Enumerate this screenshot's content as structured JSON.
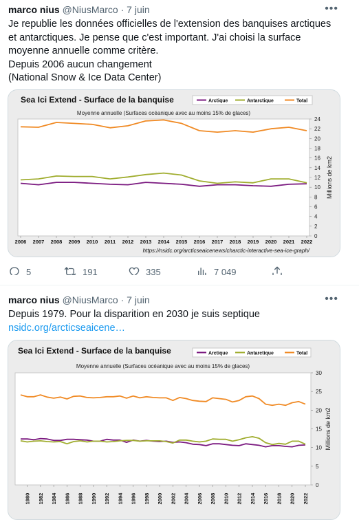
{
  "tweets": [
    {
      "author": {
        "name": "marco nius",
        "handle": "@NiusMarco"
      },
      "date": "7 juin",
      "text_lines": [
        "Je republie les données officielles de l'extension des banquises arctiques",
        "et antarctiques. Je pense que c'est important. J'ai choisi la surface",
        "moyenne annuelle comme critère.",
        "Depuis 2006 aucun changement",
        "(National Snow & Ice Data Center)"
      ],
      "actions": {
        "replies": "5",
        "retweets": "191",
        "likes": "335",
        "views": "7 049"
      }
    },
    {
      "author": {
        "name": "marco nius",
        "handle": "@NiusMarco"
      },
      "date": "7 juin",
      "text_lines": [
        "Depuis 1979. Pour la disparition en 2030 je suis septique"
      ],
      "link": "nsidc.org/arcticseaicene…"
    }
  ],
  "icons": {
    "more": "more-horizontal-icon",
    "reply": "reply-icon",
    "retweet": "retweet-icon",
    "like": "heart-icon",
    "views": "views-icon",
    "share": "share-icon"
  },
  "colors": {
    "arctique": "#7b1a80",
    "antarctique": "#a0ad2f",
    "total": "#f08a24",
    "link": "#1d9bf0"
  },
  "chart_data": [
    {
      "type": "line",
      "title": "Sea Ici Extend - Surface de la banquise",
      "subtitle": "Moyenne annuelle (Surfaces océanique avec au moins 15% de glaces)",
      "ylabel": "Millions de km2",
      "source": "https://nsidc.org/arcticseaicenews/charctic-interactive-sea-ice-graph/",
      "legend_position": "top-right",
      "ylim": [
        0,
        24
      ],
      "yticks": [
        0,
        2,
        4,
        6,
        8,
        10,
        12,
        14,
        16,
        18,
        20,
        22,
        24
      ],
      "x": [
        "2006",
        "2007",
        "2008",
        "2009",
        "2010",
        "2011",
        "2012",
        "2013",
        "2014",
        "2015",
        "2016",
        "2017",
        "2018",
        "2019",
        "2020",
        "2021",
        "2022"
      ],
      "series": [
        {
          "name": "Arctique",
          "values": [
            10.8,
            10.5,
            11.0,
            11.0,
            10.8,
            10.6,
            10.5,
            11.0,
            10.8,
            10.6,
            10.2,
            10.5,
            10.5,
            10.3,
            10.2,
            10.6,
            10.7
          ]
        },
        {
          "name": "Antarctique",
          "values": [
            11.5,
            11.7,
            12.3,
            12.2,
            12.2,
            11.7,
            12.1,
            12.6,
            12.9,
            12.5,
            11.3,
            10.8,
            11.1,
            10.9,
            11.7,
            11.7,
            10.9
          ]
        },
        {
          "name": "Total",
          "values": [
            22.4,
            22.3,
            23.3,
            23.1,
            22.9,
            22.2,
            22.6,
            23.6,
            23.8,
            23.1,
            21.6,
            21.3,
            21.6,
            21.3,
            22.0,
            22.3,
            21.6
          ]
        }
      ]
    },
    {
      "type": "line",
      "title": "Sea Ici Extend - Surface de la banquise",
      "subtitle": "Moyenne annuelle (Surfaces océanique avec au moins 15% de glaces)",
      "ylabel": "Millions de km2",
      "legend_position": "top-right",
      "ylim": [
        0,
        30
      ],
      "yticks": [
        0,
        5,
        10,
        15,
        20,
        25,
        30
      ],
      "x": [
        "1979",
        "1980",
        "1981",
        "1982",
        "1983",
        "1984",
        "1985",
        "1986",
        "1987",
        "1988",
        "1989",
        "1990",
        "1991",
        "1992",
        "1993",
        "1994",
        "1995",
        "1996",
        "1997",
        "1998",
        "1999",
        "2000",
        "2001",
        "2002",
        "2003",
        "2004",
        "2005",
        "2006",
        "2007",
        "2008",
        "2009",
        "2010",
        "2011",
        "2012",
        "2013",
        "2014",
        "2015",
        "2016",
        "2017",
        "2018",
        "2019",
        "2020",
        "2021",
        "2022"
      ],
      "xtick_labels": [
        "1980",
        "1982",
        "1984",
        "1986",
        "1988",
        "1990",
        "1992",
        "1994",
        "1996",
        "1998",
        "2000",
        "2002",
        "2004",
        "2006",
        "2008",
        "2010",
        "2012",
        "2014",
        "2016",
        "2018",
        "2020",
        "2022"
      ],
      "series": [
        {
          "name": "Arctique",
          "values": [
            12.3,
            12.3,
            12.1,
            12.4,
            12.3,
            11.9,
            11.9,
            12.2,
            12.2,
            12.1,
            12.0,
            11.7,
            11.7,
            12.2,
            12.0,
            12.0,
            11.4,
            12.0,
            11.7,
            11.9,
            11.7,
            11.6,
            11.7,
            11.4,
            11.5,
            11.3,
            10.9,
            10.8,
            10.5,
            11.0,
            11.0,
            10.8,
            10.6,
            10.5,
            11.0,
            10.8,
            10.6,
            10.2,
            10.5,
            10.5,
            10.3,
            10.2,
            10.6,
            10.7
          ]
        },
        {
          "name": "Antarctique",
          "values": [
            11.8,
            11.5,
            11.7,
            11.8,
            11.6,
            11.5,
            11.6,
            11.0,
            11.6,
            11.8,
            11.5,
            11.7,
            11.7,
            11.5,
            11.6,
            11.8,
            11.9,
            11.9,
            11.7,
            11.8,
            11.8,
            11.8,
            11.6,
            11.2,
            12.0,
            12.0,
            11.7,
            11.5,
            11.7,
            12.3,
            12.2,
            12.2,
            11.7,
            12.1,
            12.6,
            12.9,
            12.5,
            11.3,
            10.8,
            11.1,
            10.9,
            11.7,
            11.7,
            10.9
          ]
        },
        {
          "name": "Total",
          "values": [
            24.1,
            23.6,
            23.6,
            24.1,
            23.5,
            23.2,
            23.5,
            23.0,
            23.7,
            23.8,
            23.4,
            23.3,
            23.4,
            23.6,
            23.6,
            23.8,
            23.2,
            23.8,
            23.3,
            23.6,
            23.4,
            23.3,
            23.3,
            22.6,
            23.4,
            23.1,
            22.6,
            22.4,
            22.3,
            23.3,
            23.1,
            22.9,
            22.2,
            22.6,
            23.6,
            23.8,
            23.1,
            21.6,
            21.3,
            21.6,
            21.3,
            22.0,
            22.3,
            21.6
          ]
        }
      ]
    }
  ]
}
